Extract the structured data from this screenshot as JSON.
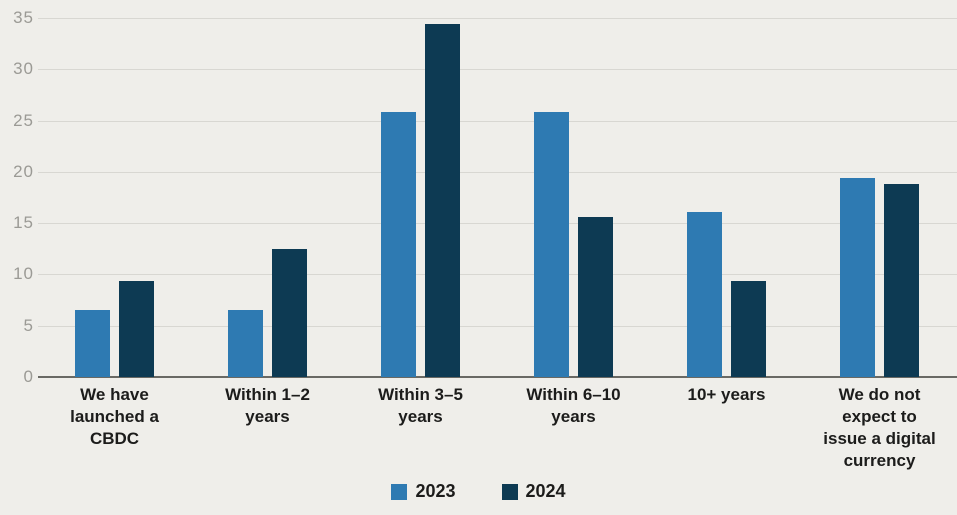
{
  "chart_data": {
    "type": "bar",
    "title": "",
    "xlabel": "",
    "ylabel": "",
    "categories": [
      "We have launched a CBDC",
      "Within 1–2 years",
      "Within 3–5 years",
      "Within 6–10 years",
      "10+ years",
      "We do not expect to issue a digital currency"
    ],
    "series": [
      {
        "name": "2023",
        "color": "#2e7ab2",
        "values": [
          6.5,
          6.5,
          25.8,
          25.8,
          16.1,
          19.4
        ]
      },
      {
        "name": "2024",
        "color": "#0d3a53",
        "values": [
          9.4,
          12.5,
          34.4,
          15.6,
          9.4,
          18.8
        ]
      }
    ],
    "ylim": [
      0,
      35
    ],
    "yticks": [
      0,
      5,
      10,
      15,
      20,
      25,
      30,
      35
    ],
    "grid": true,
    "legend_position": "bottom",
    "colors": {
      "background": "#efeeea",
      "gridline": "#d8d7d2",
      "axis_line": "#696964",
      "tick_label": "#9b9a95",
      "category_label": "#1c1c1b"
    }
  }
}
